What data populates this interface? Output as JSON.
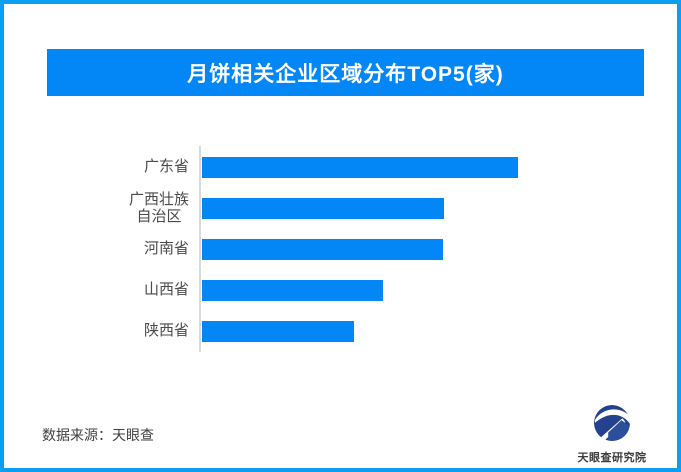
{
  "header": {
    "title": "月饼相关企业区域分布TOP5(家)"
  },
  "chart_data": {
    "type": "bar",
    "orientation": "horizontal",
    "title": "月饼相关企业区域分布TOP5(家)",
    "categories": [
      "广东省",
      "广西壮族自治区",
      "河南省",
      "山西省",
      "陕西省"
    ],
    "display_labels": [
      "广东省",
      "广西壮族\n自治区",
      "河南省",
      "山西省",
      "陕西省"
    ],
    "values": [
      100,
      76.6,
      76.3,
      57.3,
      48.1
    ],
    "value_unit": "percent of longest bar (no numeric axis or data labels shown in image)",
    "xlabel": "",
    "ylabel": "",
    "grid": false,
    "legend": false,
    "axis_line": "single light-gray vertical baseline at left of bars",
    "bar_color": "#0387f7"
  },
  "footer": {
    "source": "数据来源：天眼查",
    "brand": "天眼查研究院"
  },
  "colors": {
    "frame_border": "#0a9ff2",
    "banner": "#0387f7",
    "bar": "#0387f7",
    "axis_line": "#d9d9d9",
    "label_text": "#4a4a4a",
    "title_text": "#ffffff",
    "logo_navy": "#24418e",
    "logo_house": "#2c4f9c"
  }
}
